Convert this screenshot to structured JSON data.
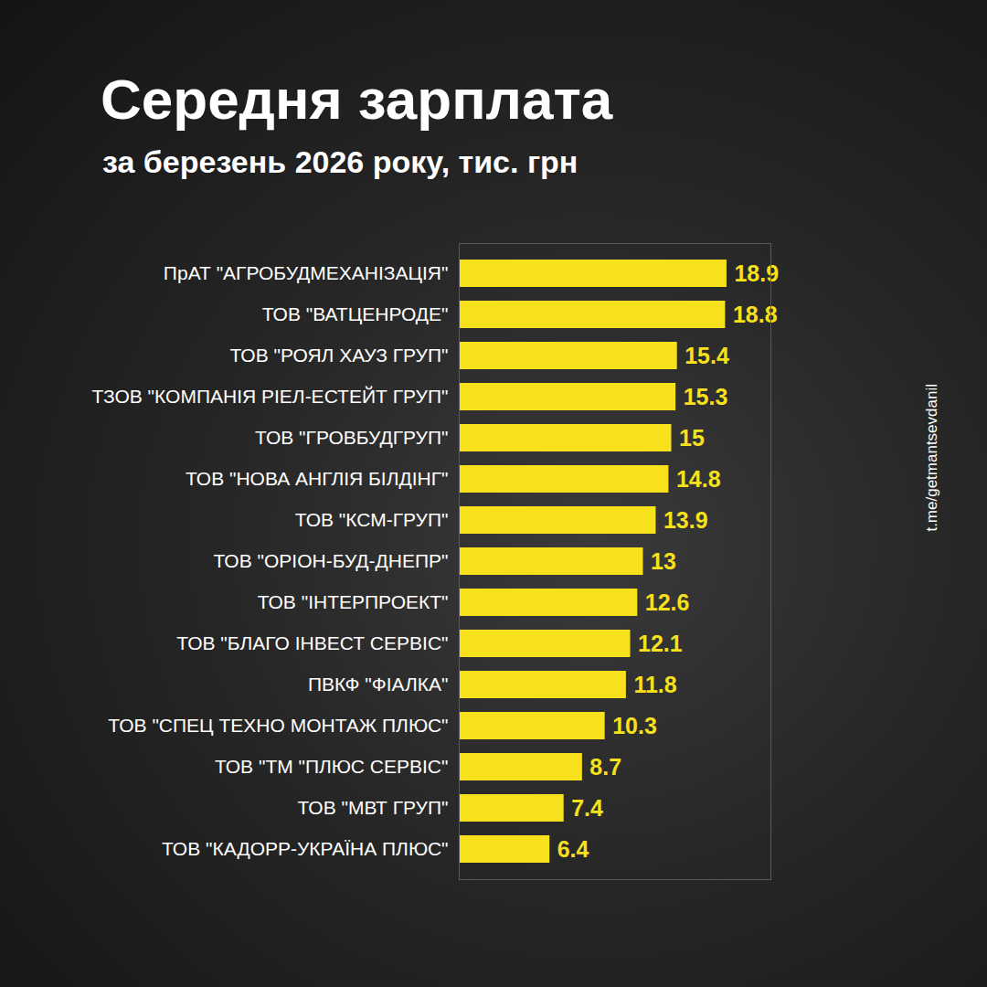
{
  "chart_data": {
    "type": "bar",
    "orientation": "horizontal",
    "title": "Середня зарплата",
    "subtitle": "за березень 2026 року, тис. грн",
    "caption": "t.me/getmantsevdanil",
    "categories": [
      "ПрАТ \"АГРОБУДМЕХАНІЗАЦІЯ\"",
      "ТОВ \"ВАТЦЕНРОДЕ\"",
      "ТОВ \"РОЯЛ ХАУЗ ГРУП\"",
      "ТЗОВ \"КОМПАНІЯ РІЕЛ-ЕСТЕЙТ ГРУП\"",
      "ТОВ \"ГРОВБУДГРУП\"",
      "ТОВ \"НОВА АНГЛІЯ БІЛДІНГ\"",
      "ТОВ \"КСМ-ГРУП\"",
      "ТОВ \"ОРІОН-БУД-ДНЕПР\"",
      "ТОВ \"ІНТЕРПРОЕКТ\"",
      "ТОВ \"БЛАГО ІНВЕСТ СЕРВІС\"",
      "ПВКФ \"ФІАЛКА\"",
      "ТОВ \"СПЕЦ ТЕХНО МОНТАЖ ПЛЮС\"",
      "ТОВ \"ТМ \"ПЛЮС СЕРВІС\"",
      "ТОВ \"МВТ ГРУП\"",
      "ТОВ \"КАДОРР-УКРАЇНА ПЛЮС\""
    ],
    "values": [
      18.9,
      18.8,
      15.4,
      15.3,
      15,
      14.8,
      13.9,
      13,
      12.6,
      12.1,
      11.8,
      10.3,
      8.7,
      7.4,
      6.4
    ],
    "color": "#f7e01c",
    "xlim": [
      0,
      22
    ],
    "xticks": [],
    "data_labels": true,
    "tick_labels": "y",
    "grid": false
  }
}
